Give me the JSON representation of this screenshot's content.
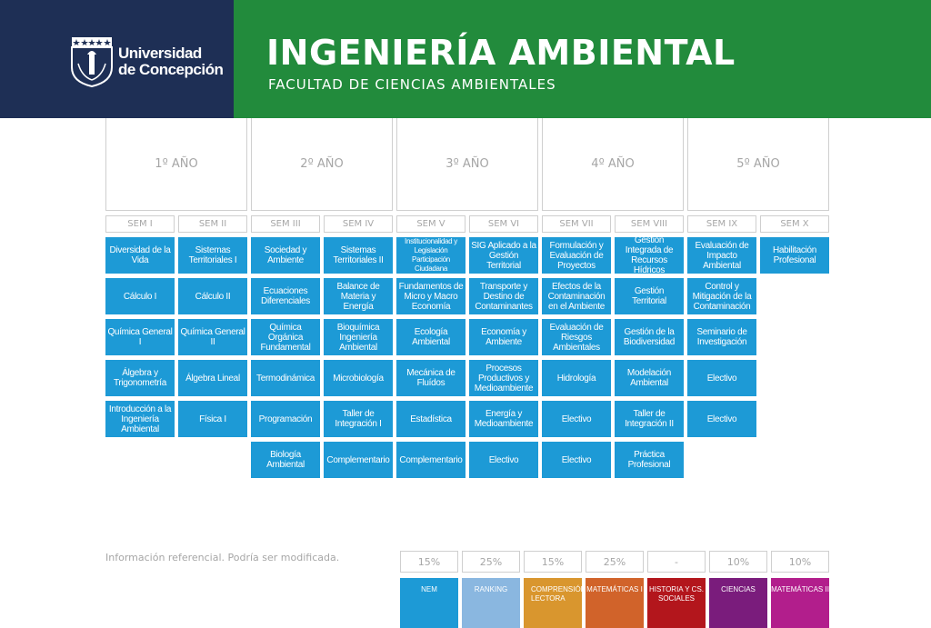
{
  "header": {
    "university_line1": "Universidad",
    "university_line2": "de Concepción",
    "title": "INGENIERÍA AMBIENTAL",
    "subtitle": "FACULTAD DE CIENCIAS AMBIENTALES",
    "colors": {
      "navy": "#1e2f55",
      "green": "#228b3c"
    }
  },
  "years": [
    "1º AÑO",
    "2º AÑO",
    "3º AÑO",
    "4º AÑO",
    "5º AÑO"
  ],
  "semesters": [
    "SEM I",
    "SEM II",
    "SEM III",
    "SEM IV",
    "SEM V",
    "SEM VI",
    "SEM VII",
    "SEM VIII",
    "SEM IX",
    "SEM X"
  ],
  "courses": [
    [
      "Diversidad de la Vida",
      "Cálculo I",
      "Química General I",
      "Álgebra y Trigonometría",
      "Introducción a la Ingeniería Ambiental"
    ],
    [
      "Sistemas Territoriales I",
      "Cálculo II",
      "Química General II",
      "Álgebra Lineal",
      "Física I"
    ],
    [
      "Sociedad y Ambiente",
      "Ecuaciones Diferenciales",
      "Química Orgánica Fundamental",
      "Termodinámica",
      "Programación",
      "Biología Ambiental"
    ],
    [
      "Sistemas Territoriales II",
      "Balance de Materia y Energía",
      "Bioquímica Ingeniería Ambiental",
      "Microbiología",
      "Taller de Integración I",
      "Complementario"
    ],
    [
      "Institucionalidad y Legislación Participación Ciudadana",
      "Fundamentos de Micro y Macro Economía",
      "Ecología Ambiental",
      "Mecánica de Fluídos",
      "Estadística",
      "Complementario"
    ],
    [
      "SIG Aplicado a la Gestión Territorial",
      "Transporte y Destino de Contaminantes",
      "Economía y Ambiente",
      "Procesos Productivos y Medioambiente",
      "Energía y Medioambiente",
      "Electivo"
    ],
    [
      "Formulación y Evaluación de Proyectos",
      "Efectos de la Contaminación en el Ambiente",
      "Evaluación de Riesgos Ambientales",
      "Hidrología",
      "Electivo",
      "Electivo"
    ],
    [
      "Gestión Integrada de Recursos Hídricos",
      "Gestión Territorial",
      "Gestión de la Biodiversidad",
      "Modelación Ambiental",
      "Taller de Integración II",
      "Práctica Profesional"
    ],
    [
      "Evaluación de Impacto Ambiental",
      "Control y Mitigación de la Contaminación",
      "Seminario de Investigación",
      "Electivo",
      "Electivo"
    ],
    [
      "Habilitación Profesional"
    ]
  ],
  "note": "Información referencial. Podría ser modificada.",
  "admission": [
    {
      "pct": "15%",
      "label": "NEM",
      "color": "#1d9ad6"
    },
    {
      "pct": "25%",
      "label": "RANKING",
      "color": "#8ab7e0"
    },
    {
      "pct": "15%",
      "label": "COMPRENSIÓN LECTORA",
      "color": "#d9962e"
    },
    {
      "pct": "25%",
      "label": "MATEMÁTICAS I",
      "color": "#d1632a"
    },
    {
      "pct": "-",
      "label": "HISTORIA Y CS. SOCIALES",
      "color": "#b3161c"
    },
    {
      "pct": "10%",
      "label": "CIENCIAS",
      "color": "#7a1c7c"
    },
    {
      "pct": "10%",
      "label": "MATEMÁTICAS II",
      "color": "#b21e8c"
    }
  ]
}
